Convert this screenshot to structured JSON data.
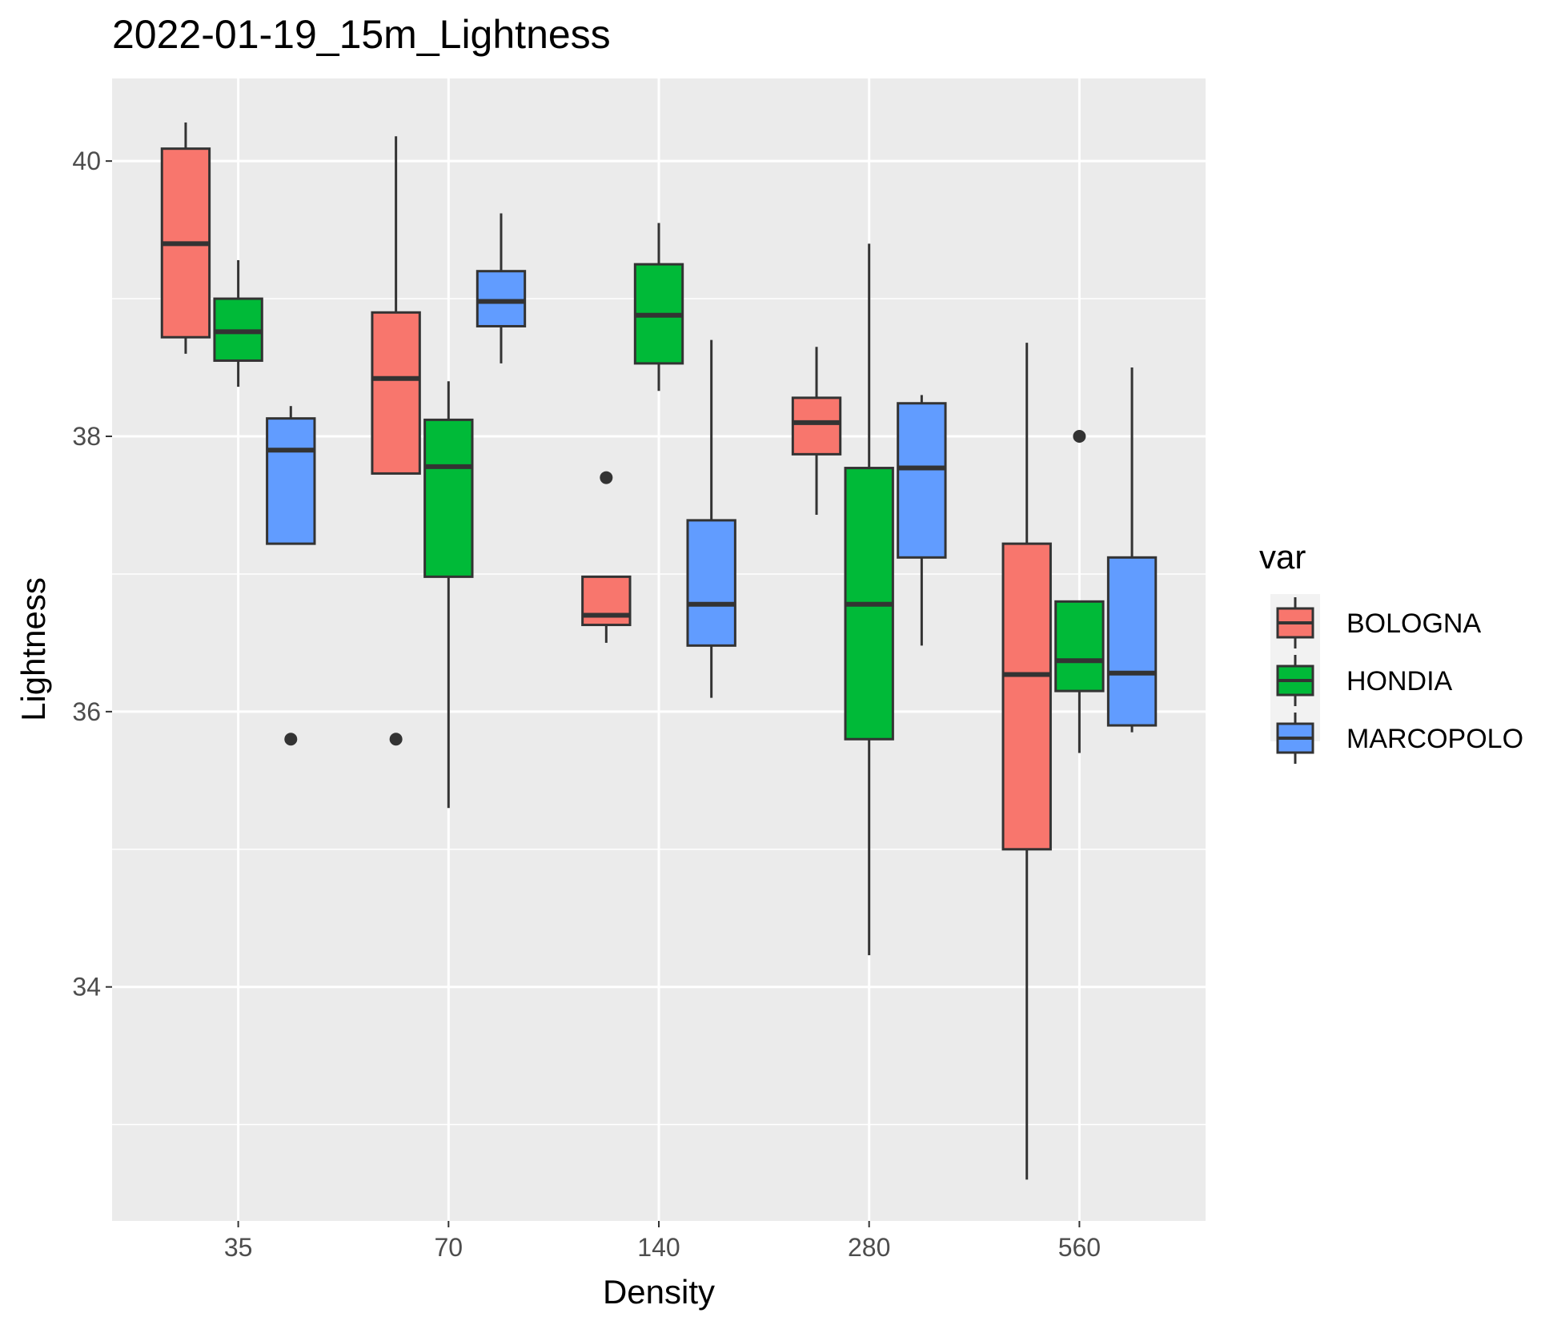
{
  "chart_data": {
    "type": "boxplot",
    "title": "2022-01-19_15m_Lightness",
    "xlabel": "Density",
    "ylabel": "Lightness",
    "categories": [
      "35",
      "70",
      "140",
      "280",
      "560"
    ],
    "y_ticks": [
      34,
      36,
      38,
      40
    ],
    "ylim": [
      32.3,
      40.6
    ],
    "grid": true,
    "legend": {
      "title": "var",
      "position": "right",
      "entries": [
        "BOLOGNA",
        "HONDIA",
        "MARCOPOLO"
      ]
    },
    "colors": {
      "BOLOGNA": "#F8766D",
      "HONDIA": "#00BA38",
      "MARCOPOLO": "#619CFF",
      "panel": "#EBEBEB",
      "grid": "#FFFFFF",
      "outline": "#333333"
    },
    "series": [
      {
        "name": "BOLOGNA",
        "boxes": [
          {
            "category": "35",
            "whisker_low": 38.6,
            "q1": 38.72,
            "median": 39.4,
            "q3": 40.09,
            "whisker_high": 40.28,
            "outliers": []
          },
          {
            "category": "70",
            "whisker_low": 37.73,
            "q1": 37.73,
            "median": 38.42,
            "q3": 38.9,
            "whisker_high": 40.18,
            "outliers": [
              35.8
            ]
          },
          {
            "category": "140",
            "whisker_low": 36.5,
            "q1": 36.63,
            "median": 36.7,
            "q3": 36.98,
            "whisker_high": 36.98,
            "outliers": [
              37.7
            ]
          },
          {
            "category": "280",
            "whisker_low": 37.43,
            "q1": 37.87,
            "median": 38.1,
            "q3": 38.28,
            "whisker_high": 38.65,
            "outliers": []
          },
          {
            "category": "560",
            "whisker_low": 32.6,
            "q1": 35.0,
            "median": 36.27,
            "q3": 37.22,
            "whisker_high": 38.68,
            "outliers": []
          }
        ]
      },
      {
        "name": "HONDIA",
        "boxes": [
          {
            "category": "35",
            "whisker_low": 38.36,
            "q1": 38.55,
            "median": 38.76,
            "q3": 39.0,
            "whisker_high": 39.28,
            "outliers": []
          },
          {
            "category": "70",
            "whisker_low": 35.3,
            "q1": 36.98,
            "median": 37.78,
            "q3": 38.12,
            "whisker_high": 38.4,
            "outliers": []
          },
          {
            "category": "140",
            "whisker_low": 38.33,
            "q1": 38.53,
            "median": 38.88,
            "q3": 39.25,
            "whisker_high": 39.55,
            "outliers": []
          },
          {
            "category": "280",
            "whisker_low": 34.23,
            "q1": 35.8,
            "median": 36.78,
            "q3": 37.77,
            "whisker_high": 39.4,
            "outliers": []
          },
          {
            "category": "560",
            "whisker_low": 35.7,
            "q1": 36.15,
            "median": 36.37,
            "q3": 36.8,
            "whisker_high": 36.8,
            "outliers": [
              38.0
            ]
          }
        ]
      },
      {
        "name": "MARCOPOLO",
        "boxes": [
          {
            "category": "35",
            "whisker_low": 37.22,
            "q1": 37.22,
            "median": 37.9,
            "q3": 38.13,
            "whisker_high": 38.22,
            "outliers": [
              35.8
            ]
          },
          {
            "category": "70",
            "whisker_low": 38.53,
            "q1": 38.8,
            "median": 38.98,
            "q3": 39.2,
            "whisker_high": 39.62,
            "outliers": []
          },
          {
            "category": "140",
            "whisker_low": 36.1,
            "q1": 36.48,
            "median": 36.78,
            "q3": 37.39,
            "whisker_high": 38.7,
            "outliers": []
          },
          {
            "category": "280",
            "whisker_low": 36.48,
            "q1": 37.12,
            "median": 37.77,
            "q3": 38.24,
            "whisker_high": 38.3,
            "outliers": []
          },
          {
            "category": "560",
            "whisker_low": 35.85,
            "q1": 35.9,
            "median": 36.28,
            "q3": 37.12,
            "whisker_high": 38.5,
            "outliers": []
          }
        ]
      }
    ]
  }
}
